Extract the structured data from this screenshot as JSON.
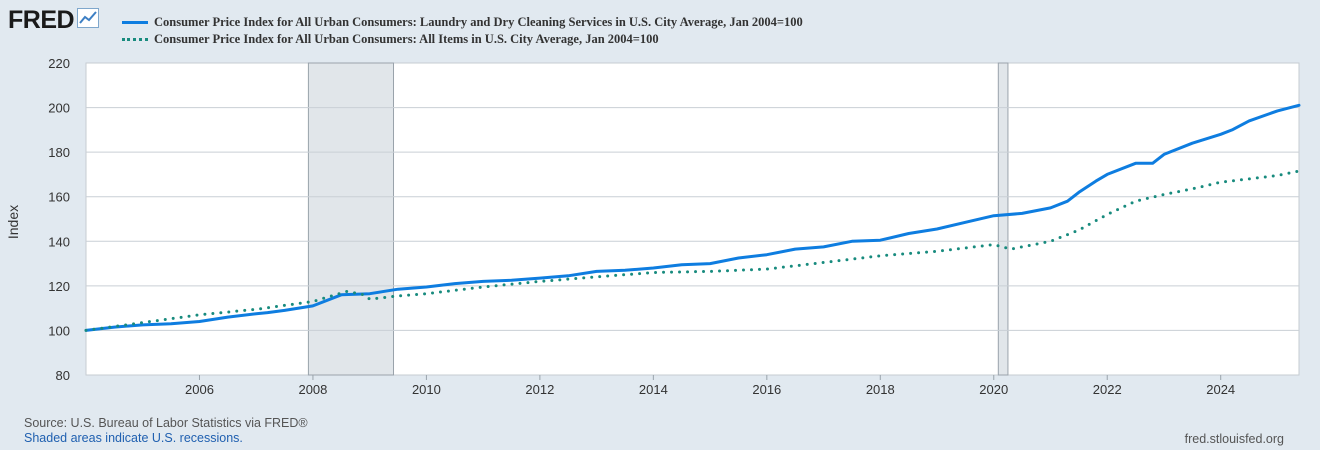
{
  "brand": {
    "name": "FRED",
    "icon": "line-chart-icon"
  },
  "chart_data": {
    "type": "line",
    "title": "",
    "xlabel": "",
    "ylabel": "Index",
    "ylim": [
      80,
      220
    ],
    "xlim": [
      2004.0,
      2025.38
    ],
    "yticks": [
      80,
      100,
      120,
      140,
      160,
      180,
      200,
      220
    ],
    "xticks": [
      2006,
      2008,
      2010,
      2012,
      2014,
      2016,
      2018,
      2020,
      2022,
      2024
    ],
    "grid": true,
    "legend_position": "top",
    "recessions": [
      [
        2007.92,
        2009.42
      ],
      [
        2020.08,
        2020.25
      ]
    ],
    "series": [
      {
        "name": "Consumer Price Index for All Urban Consumers: Laundry and Dry Cleaning Services in U.S. City Average, Jan 2004=100",
        "style": "solid",
        "color": "#0e7de0",
        "x": [
          2004.0,
          2004.5,
          2005.0,
          2005.5,
          2006.0,
          2006.5,
          2007.0,
          2007.2,
          2007.5,
          2008.0,
          2008.5,
          2009.0,
          2009.5,
          2010.0,
          2010.5,
          2011.0,
          2011.5,
          2012.0,
          2012.5,
          2013.0,
          2013.5,
          2014.0,
          2014.5,
          2015.0,
          2015.5,
          2016.0,
          2016.5,
          2017.0,
          2017.5,
          2018.0,
          2018.5,
          2019.0,
          2019.5,
          2020.0,
          2020.5,
          2021.0,
          2021.3,
          2021.5,
          2021.8,
          2022.0,
          2022.5,
          2022.8,
          2023.0,
          2023.5,
          2024.0,
          2024.2,
          2024.5,
          2025.0,
          2025.38
        ],
        "values": [
          100,
          101.5,
          102.5,
          103,
          104,
          106,
          107.5,
          108,
          109,
          111,
          116,
          116.5,
          118.5,
          119.5,
          121,
          122,
          122.5,
          123.5,
          124.5,
          126.5,
          127,
          128,
          129.5,
          130,
          132.5,
          134,
          136.5,
          137.5,
          140,
          140.5,
          143.5,
          145.5,
          148.5,
          151.5,
          152.5,
          155,
          158,
          162,
          167,
          170,
          175,
          175,
          179,
          184,
          188,
          190,
          194,
          198.5,
          201
        ]
      },
      {
        "name": "Consumer Price Index for All Urban Consumers: All Items in U.S. City Average, Jan 2004=100",
        "style": "dotted",
        "color": "#188b7e",
        "x": [
          2004.0,
          2005.0,
          2006.0,
          2007.0,
          2008.0,
          2008.6,
          2008.9,
          2009.0,
          2009.5,
          2010.0,
          2011.0,
          2012.0,
          2013.0,
          2014.0,
          2015.0,
          2016.0,
          2017.0,
          2018.0,
          2019.0,
          2020.0,
          2020.3,
          2020.5,
          2021.0,
          2021.5,
          2022.0,
          2022.5,
          2023.0,
          2023.5,
          2024.0,
          2024.5,
          2025.0,
          2025.38
        ],
        "values": [
          100,
          103.5,
          107,
          109.5,
          113,
          117.5,
          116,
          114,
          115.5,
          116.5,
          119.5,
          122,
          124,
          126,
          126.5,
          127.5,
          130.5,
          133.5,
          135.5,
          138.5,
          136.5,
          137.5,
          140,
          145,
          152,
          158,
          161,
          163.5,
          166.5,
          168,
          169.5,
          171.5
        ]
      }
    ]
  },
  "footer": {
    "source": "Source: U.S. Bureau of Labor Statistics via FRED®",
    "recession_note": "Shaded areas indicate U.S. recessions.",
    "url": "fred.stlouisfed.org"
  }
}
